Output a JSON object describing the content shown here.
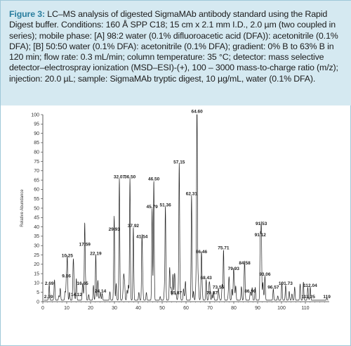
{
  "caption": {
    "label": "Figure 3:",
    "text": "LC–MS analysis of digested SigmaMAb antibody standard using the Rapid Digest buffer. Conditions: 160 Å SPP C18; 15 cm x 2.1 mm I.D., 2.0 µm (two coupled in series); mobile phase: [A] 98:2 water (0.1% difluoroacetic acid (DFA)): acetonitrile (0.1% DFA); [B] 50:50 water (0.1% DFA): acetonitrile (0.1% DFA); gradient: 0% B to 63% B in 120 min; flow rate: 0.3 mL/min; column temperature: 35 °C; detector: mass selective detector–electrospray ionization (MSD–ESI)-(+), 100 – 3000 mass-to-charge ratio (m/z); injection: 20.0 µL; sample: SigmaMAb tryptic digest, 10 µg/mL, water (0.1% DFA)."
  },
  "colors": {
    "caption_background": "#d5e9f1",
    "caption_label": "#2a7e9e",
    "trace": "#222222",
    "border": "#9fc8d8"
  },
  "chart_data": {
    "type": "line",
    "ylabel": "Relative Abundance",
    "xlabel": "",
    "xlim": [
      0,
      120
    ],
    "ylim": [
      0,
      100
    ],
    "x_ticks": [
      0,
      10,
      20,
      30,
      40,
      50,
      60,
      70,
      80,
      90,
      100,
      110
    ],
    "x_tick_labels": [
      "0",
      "10",
      "20",
      "30",
      "40",
      "50",
      "60",
      "70",
      "80",
      "90",
      "100",
      "110"
    ],
    "y_ticks": [
      0,
      5,
      10,
      15,
      20,
      25,
      30,
      35,
      40,
      45,
      50,
      55,
      60,
      65,
      70,
      75,
      80,
      85,
      90,
      95,
      100
    ],
    "y_tick_labels": [
      "0",
      "5",
      "10",
      "15",
      "20",
      "25",
      "30",
      "35",
      "40",
      "45",
      "50",
      "55",
      "60",
      "65",
      "70",
      "75",
      "80",
      "85",
      "90",
      "95",
      "100"
    ],
    "grid": false,
    "peaks": [
      {
        "rt": 2.69,
        "label": "2.69",
        "abundance": 8
      },
      {
        "rt": 2.39,
        "label": "2.39",
        "abundance": 1
      },
      {
        "rt": 9.86,
        "label": "9.86",
        "abundance": 12
      },
      {
        "rt": 10.25,
        "label": "10.25",
        "abundance": 23
      },
      {
        "rt": 14.12,
        "label": "14.12",
        "abundance": 2
      },
      {
        "rt": 16.65,
        "label": "16.65",
        "abundance": 8
      },
      {
        "rt": 17.59,
        "label": "17.59",
        "abundance": 29
      },
      {
        "rt": 22.19,
        "label": "22.19",
        "abundance": 24
      },
      {
        "rt": 24.14,
        "label": "24.14",
        "abundance": 4
      },
      {
        "rt": 29.93,
        "label": "29.93",
        "abundance": 37
      },
      {
        "rt": 32.07,
        "label": "32.07",
        "abundance": 65
      },
      {
        "rt": 36.5,
        "label": "36.50",
        "abundance": 65
      },
      {
        "rt": 37.92,
        "label": "37.92",
        "abundance": 39
      },
      {
        "rt": 41.54,
        "label": "41.54",
        "abundance": 33
      },
      {
        "rt": 45.79,
        "label": "45.79",
        "abundance": 49
      },
      {
        "rt": 46.5,
        "label": "46.50",
        "abundance": 64
      },
      {
        "rt": 51.36,
        "label": "51.36",
        "abundance": 50
      },
      {
        "rt": 55.87,
        "label": "55.87",
        "abundance": 3
      },
      {
        "rt": 57.15,
        "label": "57.15",
        "abundance": 73
      },
      {
        "rt": 62.31,
        "label": "62.31",
        "abundance": 56
      },
      {
        "rt": 64.6,
        "label": "64.60",
        "abundance": 100
      },
      {
        "rt": 66.46,
        "label": "66.46",
        "abundance": 25
      },
      {
        "rt": 68.43,
        "label": "68.43",
        "abundance": 11
      },
      {
        "rt": 70.87,
        "label": "70.87",
        "abundance": 3
      },
      {
        "rt": 73.55,
        "label": "73.55",
        "abundance": 6
      },
      {
        "rt": 75.71,
        "label": "75.71",
        "abundance": 27
      },
      {
        "rt": 79.93,
        "label": "79.93",
        "abundance": 16
      },
      {
        "rt": 84.58,
        "label": "84.58",
        "abundance": 19
      },
      {
        "rt": 86.9,
        "label": "86.90",
        "abundance": 4
      },
      {
        "rt": 91.12,
        "label": "91.12",
        "abundance": 34
      },
      {
        "rt": 91.53,
        "label": "91.53",
        "abundance": 40
      },
      {
        "rt": 93.06,
        "label": "93.06",
        "abundance": 13
      },
      {
        "rt": 96.57,
        "label": "96.57",
        "abundance": 6
      },
      {
        "rt": 101.73,
        "label": "101.73",
        "abundance": 8
      },
      {
        "rt": 111.25,
        "label": "111.25",
        "abundance": 1
      },
      {
        "rt": 112.04,
        "label": "112.04",
        "abundance": 7
      },
      {
        "rt": 119,
        "label": "119",
        "abundance": 1
      }
    ]
  }
}
